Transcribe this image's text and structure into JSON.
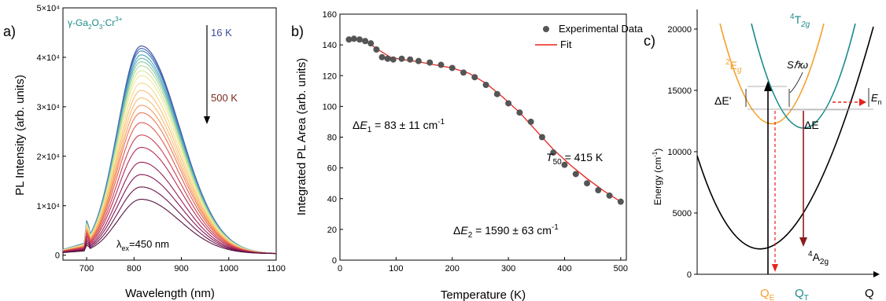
{
  "panels": {
    "a": {
      "letter": "a)",
      "material": "γ-Ga",
      "material_sub1": "2",
      "material_mid": "O",
      "material_sub2": "3",
      "material_end": ":Cr",
      "material_sup": "3+",
      "temp_high": "16 K",
      "temp_low": "500 K",
      "excitation_prefix": "λ",
      "excitation_sub": "ex",
      "excitation_value": "=450 nm",
      "colors": [
        "#3b4ba0",
        "#4868b4",
        "#3f86bc",
        "#4aa0bd",
        "#66b8b4",
        "#8ccaa8",
        "#b1d89e",
        "#d5e69a",
        "#eeea9c",
        "#f8d98a",
        "#fbbd70",
        "#f79a5d",
        "#ef7852",
        "#de5a4e",
        "#cc3f50",
        "#b52b56",
        "#9b1e56",
        "#821852",
        "#6a164b",
        "#551442"
      ]
    },
    "b": {
      "letter": "b)",
      "legend_data": "Experimental Data",
      "legend_fit": "Fit",
      "de1_prefix": "Δ",
      "de1_var": "E",
      "de1_sub": "1",
      "de1_text": " = 83 ± 11 cm",
      "de1_sup": "-1",
      "t50_var": "T",
      "t50_sub": "50",
      "t50_text": " = 415 K",
      "de2_prefix": "Δ",
      "de2_var": "E",
      "de2_sub": "2",
      "de2_text": " = 1590 ± 63 cm",
      "de2_sup": "-1",
      "marker_color": "#555555",
      "fit_color": "#e8221c"
    },
    "c": {
      "letter": "c)",
      "level_4T2g": "4",
      "level_4T2g_main": "T",
      "level_4T2g_sub": "2g",
      "level_2Eg": "2",
      "level_2Eg_main": "E",
      "level_2Eg_sub": "g",
      "level_4A2g": "4",
      "level_4A2g_main": "A",
      "level_4A2g_sub": "2g",
      "s_hw_label": "Sℏω",
      "dE_prime": "ΔE'",
      "dE": "ΔE",
      "en_main": "E",
      "en_sub": "n",
      "qe_main": "Q",
      "qe_sub": "E",
      "qt_main": "Q",
      "qt_sub": "T",
      "q_label": "Q",
      "ylabel": "Energy (cm",
      "ylabel_sup": "-1",
      "ylabel_end": ")",
      "color_4T2g": "#1b8a8a",
      "color_2Eg": "#f4a02c",
      "color_ground": "#000000",
      "color_emission": "#8b1c1c",
      "color_dashed": "#e8221c"
    }
  },
  "chart_data": [
    {
      "type": "line",
      "panel": "a",
      "title": "",
      "xlabel": "Wavelength (nm)",
      "ylabel": "PL Intensity (arb. units)",
      "xlim": [
        650,
        1100
      ],
      "ylim": [
        -1000,
        50000
      ],
      "xticks": [
        700,
        800,
        900,
        1000,
        1100
      ],
      "xtick_labels": [
        "700",
        "800",
        "900",
        "1000",
        "1100"
      ],
      "yticks": [
        0,
        10000,
        20000,
        30000,
        40000,
        50000
      ],
      "ytick_labels": [
        "0",
        "1×10⁴",
        "2×10⁴",
        "3×10⁴",
        "4×10⁴",
        "5×10⁴"
      ],
      "peak_wavelength": 815,
      "series_temperature_range": [
        "16 K",
        "500 K"
      ],
      "series_peak_values": [
        42000,
        41500,
        41000,
        40200,
        39500,
        38800,
        38000,
        37000,
        36000,
        34500,
        33000,
        31500,
        30000,
        28500,
        26500,
        24000,
        21500,
        18500,
        16000,
        13500,
        11000
      ]
    },
    {
      "type": "scatter",
      "panel": "b",
      "title": "",
      "xlabel": "Temperature (K)",
      "ylabel": "Integrated PL Area (arb. units)",
      "xlim": [
        0,
        510
      ],
      "ylim": [
        0,
        160
      ],
      "xticks": [
        0,
        100,
        200,
        300,
        400,
        500
      ],
      "yticks": [
        0,
        20,
        40,
        60,
        80,
        100,
        120,
        140,
        160
      ],
      "series": [
        {
          "name": "Experimental Data",
          "x": [
            16,
            25,
            35,
            45,
            55,
            65,
            75,
            85,
            95,
            110,
            125,
            140,
            160,
            180,
            200,
            220,
            240,
            260,
            280,
            300,
            320,
            340,
            360,
            380,
            400,
            420,
            440,
            460,
            480,
            500
          ],
          "y": [
            143.5,
            144,
            143.5,
            142.5,
            141,
            137,
            132,
            131,
            130.5,
            131,
            130.5,
            129.5,
            128.5,
            127,
            125,
            122,
            119,
            114,
            108,
            102,
            96,
            90,
            80,
            70,
            62,
            56,
            50,
            45.5,
            42,
            38
          ]
        },
        {
          "name": "Fit",
          "x": [
            16,
            30,
            50,
            70,
            90,
            110,
            140,
            170,
            200,
            230,
            260,
            290,
            320,
            350,
            380,
            410,
            440,
            470,
            500
          ],
          "y": [
            143.5,
            143.5,
            141.5,
            136.5,
            132,
            130.5,
            129,
            127,
            125,
            121.5,
            115,
            106,
            96,
            84,
            72,
            62,
            53,
            45,
            38
          ]
        }
      ]
    },
    {
      "type": "line",
      "panel": "c",
      "title": "",
      "xlabel": "Q",
      "ylabel": "Energy (cm-1)",
      "ylim": [
        0,
        22500
      ],
      "yticks": [
        0,
        5000,
        10000,
        15000,
        20000
      ],
      "x_labels": [
        "QE",
        "QT"
      ],
      "series": [
        {
          "name": "4A2g",
          "min_energy": 0
        },
        {
          "name": "2Eg",
          "min_energy": 14200
        },
        {
          "name": "4T2g",
          "min_energy": 14600
        }
      ]
    }
  ]
}
